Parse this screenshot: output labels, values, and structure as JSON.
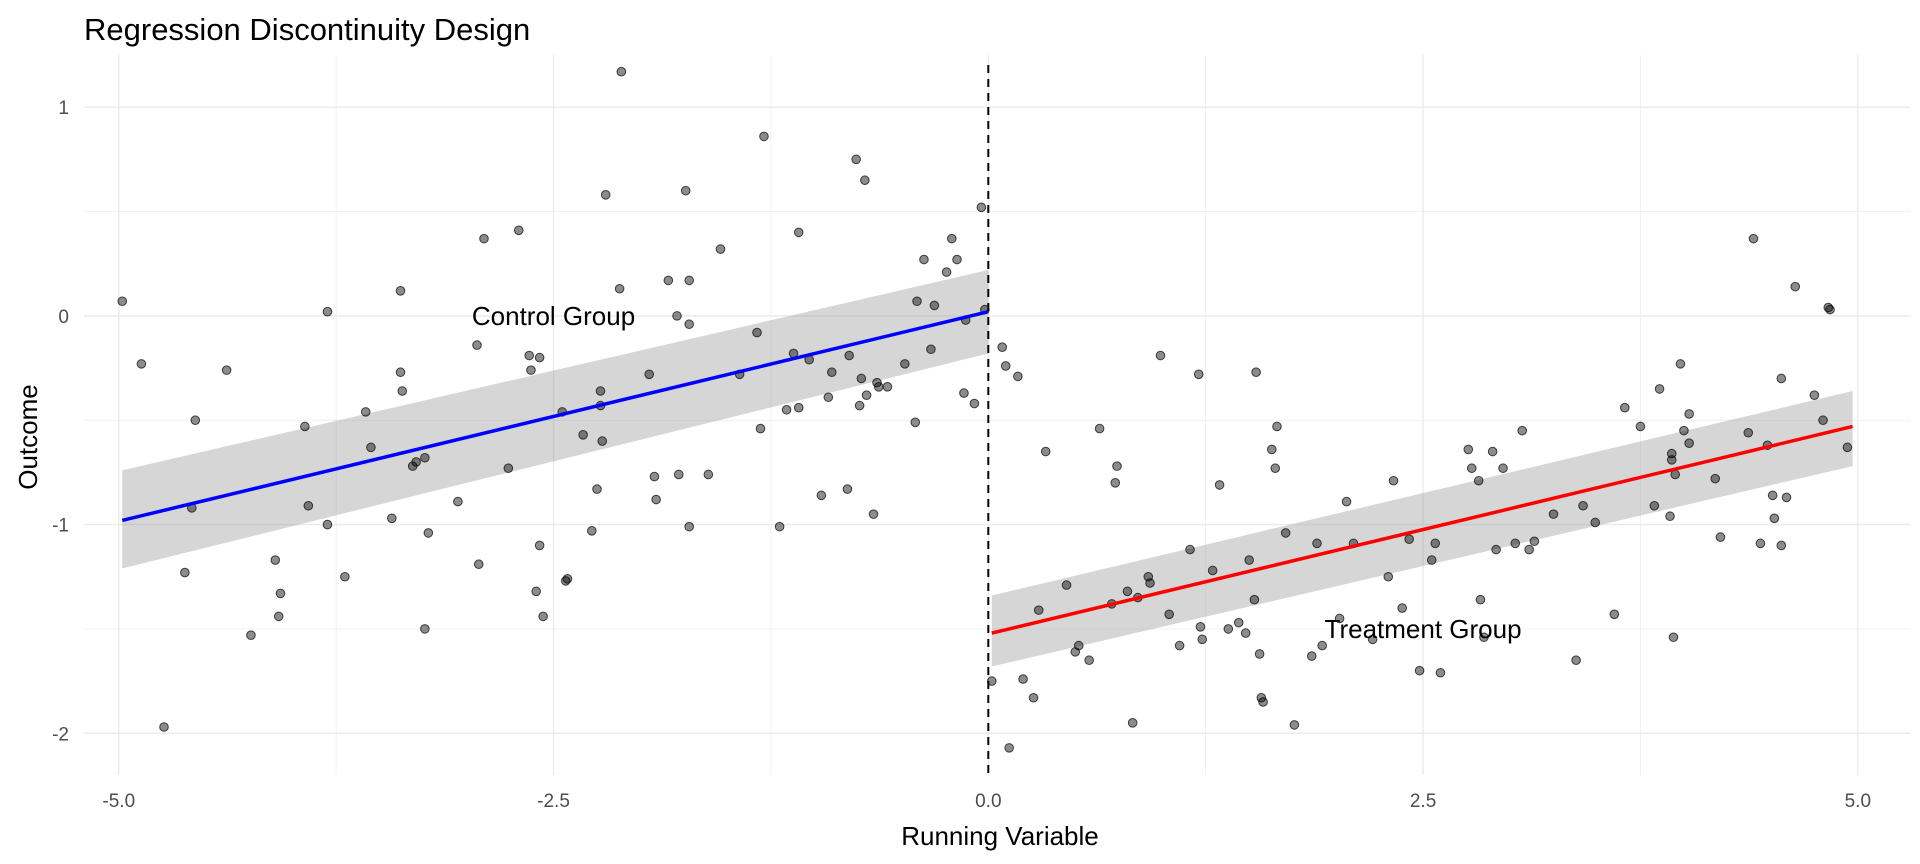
{
  "chart_data": {
    "type": "scatter",
    "title": "Regression Discontinuity Design",
    "xlabel": "Running Variable",
    "ylabel": "Outcome",
    "xlim": [
      -5.2,
      5.3
    ],
    "ylim": [
      -2.2,
      1.25
    ],
    "x_ticks": [
      -5.0,
      -2.5,
      0.0,
      2.5,
      5.0
    ],
    "x_tick_labels": [
      "-5.0",
      "-2.5",
      "0.0",
      "2.5",
      "5.0"
    ],
    "y_ticks": [
      -2,
      -1,
      0,
      1
    ],
    "y_tick_labels": [
      "-2",
      "-1",
      "0",
      "1"
    ],
    "grid": true,
    "cutoff": 0,
    "annotations": [
      {
        "text": "Control Group",
        "x": -2.5,
        "y": 0.0
      },
      {
        "text": "Treatment Group",
        "x": 2.5,
        "y": -1.5
      }
    ],
    "fits": [
      {
        "x": [
          -4.98,
          0.0
        ],
        "y": [
          -0.98,
          0.02
        ],
        "ci_low": [
          -1.21,
          -0.18
        ],
        "ci_high": [
          -0.74,
          0.22
        ],
        "color": "#0000ff"
      },
      {
        "x": [
          0.02,
          4.97
        ],
        "y": [
          -1.52,
          -0.53
        ],
        "ci_low": [
          -1.68,
          -0.72
        ],
        "ci_high": [
          -1.34,
          -0.36
        ],
        "color": "#ff0000"
      }
    ],
    "points": [
      [
        -4.98,
        0.07
      ],
      [
        -4.87,
        -0.23
      ],
      [
        -4.74,
        -1.97
      ],
      [
        -4.62,
        -1.23
      ],
      [
        -4.58,
        -0.92
      ],
      [
        -4.56,
        -0.5
      ],
      [
        -4.38,
        -0.26
      ],
      [
        -4.24,
        -1.53
      ],
      [
        -4.1,
        -1.17
      ],
      [
        -4.07,
        -1.33
      ],
      [
        -4.08,
        -1.44
      ],
      [
        -3.93,
        -0.53
      ],
      [
        -3.91,
        -0.91
      ],
      [
        -3.8,
        0.02
      ],
      [
        -3.8,
        -1.0
      ],
      [
        -3.7,
        -1.25
      ],
      [
        -3.58,
        -0.46
      ],
      [
        -3.55,
        -0.63
      ],
      [
        -3.43,
        -0.97
      ],
      [
        -3.38,
        -0.27
      ],
      [
        -3.37,
        -0.36
      ],
      [
        -3.38,
        0.12
      ],
      [
        -3.31,
        -0.72
      ],
      [
        -3.29,
        -0.7
      ],
      [
        -3.24,
        -0.68
      ],
      [
        -3.24,
        -1.5
      ],
      [
        -3.22,
        -1.04
      ],
      [
        -3.05,
        -0.89
      ],
      [
        -2.94,
        -0.14
      ],
      [
        -2.93,
        -1.19
      ],
      [
        -2.9,
        0.37
      ],
      [
        -2.76,
        -0.73
      ],
      [
        -2.7,
        0.41
      ],
      [
        -2.64,
        -0.19
      ],
      [
        -2.63,
        -0.26
      ],
      [
        -2.6,
        -1.32
      ],
      [
        -2.58,
        -1.1
      ],
      [
        -2.58,
        -0.2
      ],
      [
        -2.56,
        -1.44
      ],
      [
        -2.45,
        -0.46
      ],
      [
        -2.43,
        -1.27
      ],
      [
        -2.42,
        -1.26
      ],
      [
        -2.33,
        -0.57
      ],
      [
        -2.28,
        -1.03
      ],
      [
        -2.25,
        -0.83
      ],
      [
        -2.23,
        -0.36
      ],
      [
        -2.23,
        -0.43
      ],
      [
        -2.22,
        -0.6
      ],
      [
        -2.2,
        0.58
      ],
      [
        -2.12,
        0.13
      ],
      [
        -2.11,
        1.17
      ],
      [
        -1.95,
        -0.28
      ],
      [
        -1.92,
        -0.77
      ],
      [
        -1.91,
        -0.88
      ],
      [
        -1.84,
        0.17
      ],
      [
        -1.79,
        0.0
      ],
      [
        -1.78,
        -0.76
      ],
      [
        -1.74,
        0.6
      ],
      [
        -1.72,
        -1.01
      ],
      [
        -1.72,
        0.17
      ],
      [
        -1.72,
        -0.04
      ],
      [
        -1.61,
        -0.76
      ],
      [
        -1.54,
        0.32
      ],
      [
        -1.43,
        -0.28
      ],
      [
        -1.33,
        -0.08
      ],
      [
        -1.31,
        -0.54
      ],
      [
        -1.29,
        0.86
      ],
      [
        -1.2,
        -1.01
      ],
      [
        -1.16,
        -0.45
      ],
      [
        -1.12,
        -0.18
      ],
      [
        -1.09,
        0.4
      ],
      [
        -1.09,
        -0.44
      ],
      [
        -1.03,
        -0.21
      ],
      [
        -0.96,
        -0.86
      ],
      [
        -0.92,
        -0.39
      ],
      [
        -0.9,
        -0.27
      ],
      [
        -0.81,
        -0.83
      ],
      [
        -0.8,
        -0.19
      ],
      [
        -0.76,
        0.75
      ],
      [
        -0.74,
        -0.43
      ],
      [
        -0.73,
        -0.3
      ],
      [
        -0.71,
        0.65
      ],
      [
        -0.7,
        -0.38
      ],
      [
        -0.66,
        -0.95
      ],
      [
        -0.64,
        -0.32
      ],
      [
        -0.63,
        -0.34
      ],
      [
        -0.58,
        -0.34
      ],
      [
        -0.48,
        -0.23
      ],
      [
        -0.42,
        -0.51
      ],
      [
        -0.41,
        0.07
      ],
      [
        -0.37,
        0.27
      ],
      [
        -0.33,
        -0.16
      ],
      [
        -0.31,
        0.05
      ],
      [
        -0.24,
        0.21
      ],
      [
        -0.21,
        0.37
      ],
      [
        -0.18,
        0.27
      ],
      [
        -0.14,
        -0.37
      ],
      [
        -0.13,
        -0.02
      ],
      [
        -0.08,
        -0.42
      ],
      [
        -0.04,
        0.52
      ],
      [
        -0.02,
        0.03
      ],
      [
        0.08,
        -0.15
      ],
      [
        0.1,
        -0.24
      ],
      [
        0.17,
        -0.29
      ],
      [
        0.02,
        -1.75
      ],
      [
        0.12,
        -2.07
      ],
      [
        0.2,
        -1.74
      ],
      [
        0.26,
        -1.83
      ],
      [
        0.29,
        -1.41
      ],
      [
        0.33,
        -0.65
      ],
      [
        0.45,
        -1.29
      ],
      [
        0.5,
        -1.61
      ],
      [
        0.52,
        -1.58
      ],
      [
        0.58,
        -1.65
      ],
      [
        0.64,
        -0.54
      ],
      [
        0.71,
        -1.38
      ],
      [
        0.73,
        -0.8
      ],
      [
        0.74,
        -0.72
      ],
      [
        0.8,
        -1.32
      ],
      [
        0.83,
        -1.95
      ],
      [
        0.86,
        -1.35
      ],
      [
        0.92,
        -1.25
      ],
      [
        0.93,
        -1.28
      ],
      [
        0.99,
        -0.19
      ],
      [
        1.04,
        -1.43
      ],
      [
        1.1,
        -1.58
      ],
      [
        1.16,
        -1.12
      ],
      [
        1.21,
        -0.28
      ],
      [
        1.22,
        -1.49
      ],
      [
        1.23,
        -1.55
      ],
      [
        1.29,
        -1.22
      ],
      [
        1.33,
        -0.81
      ],
      [
        1.38,
        -1.5
      ],
      [
        1.44,
        -1.47
      ],
      [
        1.48,
        -1.52
      ],
      [
        1.5,
        -1.17
      ],
      [
        1.53,
        -1.36
      ],
      [
        1.54,
        -0.27
      ],
      [
        1.56,
        -1.62
      ],
      [
        1.57,
        -1.83
      ],
      [
        1.58,
        -1.85
      ],
      [
        1.63,
        -0.64
      ],
      [
        1.65,
        -0.73
      ],
      [
        1.66,
        -0.53
      ],
      [
        1.71,
        -1.04
      ],
      [
        1.76,
        -1.96
      ],
      [
        1.86,
        -1.63
      ],
      [
        1.89,
        -1.09
      ],
      [
        1.92,
        -1.58
      ],
      [
        2.02,
        -1.45
      ],
      [
        2.06,
        -0.89
      ],
      [
        2.1,
        -1.09
      ],
      [
        2.21,
        -1.55
      ],
      [
        2.3,
        -1.25
      ],
      [
        2.33,
        -0.79
      ],
      [
        2.38,
        -1.4
      ],
      [
        2.42,
        -1.07
      ],
      [
        2.48,
        -1.7
      ],
      [
        2.55,
        -1.17
      ],
      [
        2.57,
        -1.09
      ],
      [
        2.6,
        -1.71
      ],
      [
        2.76,
        -0.64
      ],
      [
        2.78,
        -0.73
      ],
      [
        2.82,
        -0.79
      ],
      [
        2.83,
        -1.36
      ],
      [
        2.85,
        -1.54
      ],
      [
        2.9,
        -0.65
      ],
      [
        2.92,
        -1.12
      ],
      [
        2.96,
        -0.73
      ],
      [
        3.03,
        -1.09
      ],
      [
        3.07,
        -0.55
      ],
      [
        3.11,
        -1.12
      ],
      [
        3.14,
        -1.08
      ],
      [
        3.25,
        -0.95
      ],
      [
        3.38,
        -1.65
      ],
      [
        3.42,
        -0.91
      ],
      [
        3.49,
        -0.99
      ],
      [
        3.6,
        -1.43
      ],
      [
        3.66,
        -0.44
      ],
      [
        3.75,
        -0.53
      ],
      [
        3.83,
        -0.91
      ],
      [
        3.86,
        -0.35
      ],
      [
        3.92,
        -0.96
      ],
      [
        3.93,
        -0.69
      ],
      [
        3.93,
        -0.66
      ],
      [
        3.94,
        -1.54
      ],
      [
        3.95,
        -0.76
      ],
      [
        3.98,
        -0.23
      ],
      [
        4.0,
        -0.55
      ],
      [
        4.03,
        -0.61
      ],
      [
        4.03,
        -0.47
      ],
      [
        4.18,
        -0.78
      ],
      [
        4.21,
        -1.06
      ],
      [
        4.37,
        -0.56
      ],
      [
        4.4,
        0.37
      ],
      [
        4.44,
        -1.09
      ],
      [
        4.48,
        -0.62
      ],
      [
        4.51,
        -0.86
      ],
      [
        4.52,
        -0.97
      ],
      [
        4.56,
        -0.3
      ],
      [
        4.56,
        -1.1
      ],
      [
        4.59,
        -0.87
      ],
      [
        4.64,
        0.14
      ],
      [
        4.75,
        -0.38
      ],
      [
        4.8,
        -0.5
      ],
      [
        4.83,
        0.04
      ],
      [
        4.84,
        0.03
      ],
      [
        4.94,
        -0.63
      ]
    ]
  }
}
